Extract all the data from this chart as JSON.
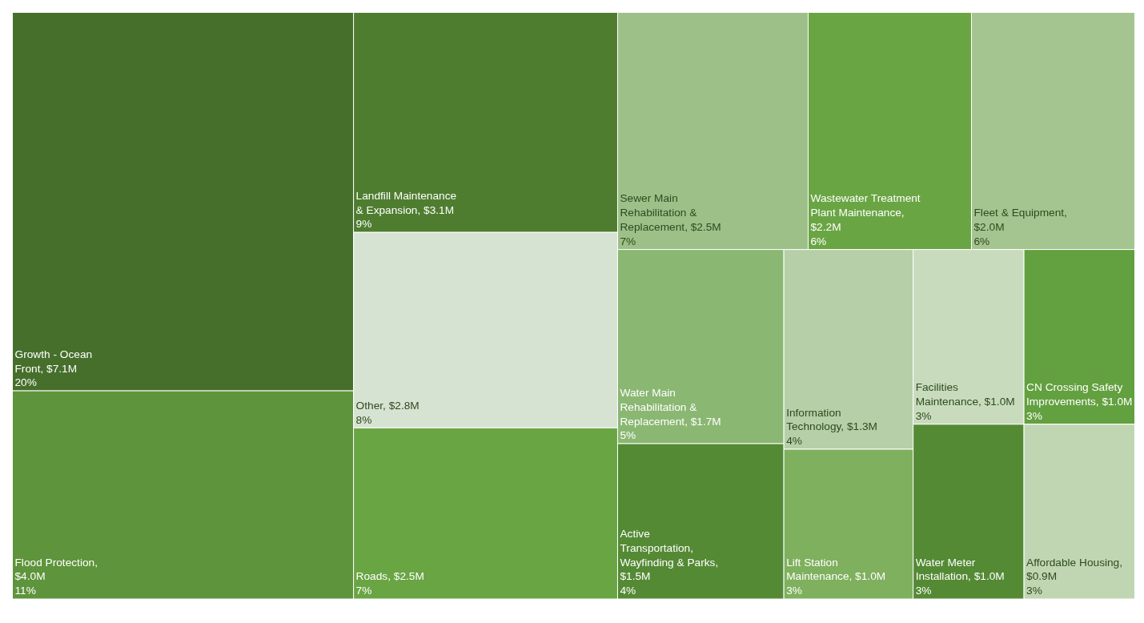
{
  "chart_data": {
    "type": "other",
    "categories": [
      "Growth - Ocean Front, $7.1M",
      "Flood Protection, $4.0M",
      "Landfill Maintenance & Expansion, $3.1M",
      "Other, $2.8M",
      "Roads, $2.5M",
      "Sewer Main Rehabilitation & Replacement, $2.5M",
      "Wastewater Treatment Plant Maintenance, $2.2M",
      "Fleet & Equipment, $2.0M",
      "Water Main Rehabilitation & Replacement, $1.7M",
      "Active Transportation, Wayfinding & Parks, $1.5M",
      "Information Technology, $1.3M",
      "Lift Station Maintenance, $1.0M",
      "Facilities Maintenance, $1.0M",
      "CN Crossing Safety Improvements, $1.0M",
      "Water Meter Installation, $1.0M",
      "Affordable Housing, $0.9M"
    ],
    "values": [
      20,
      11,
      9,
      8,
      7,
      7,
      6,
      6,
      5,
      4,
      4,
      3,
      3,
      3,
      3,
      3
    ],
    "value_labels": [
      "20%",
      "11%",
      "9%",
      "8%",
      "7%",
      "7%",
      "6%",
      "6%",
      "5%",
      "4%",
      "4%",
      "3%",
      "3%",
      "3%",
      "3%",
      "3%"
    ],
    "colors": [
      "#466f2c",
      "#5e943b",
      "#4f7d30",
      "#d7e3d2",
      "#6aa544",
      "#9dc089",
      "#6aa544",
      "#a5c590",
      "#8ab772",
      "#558a35",
      "#b6cfa8",
      "#7fb05e",
      "#c8dcbd",
      "#63a040",
      "#558a35",
      "#c0d6b3"
    ],
    "data_labels": true
  }
}
